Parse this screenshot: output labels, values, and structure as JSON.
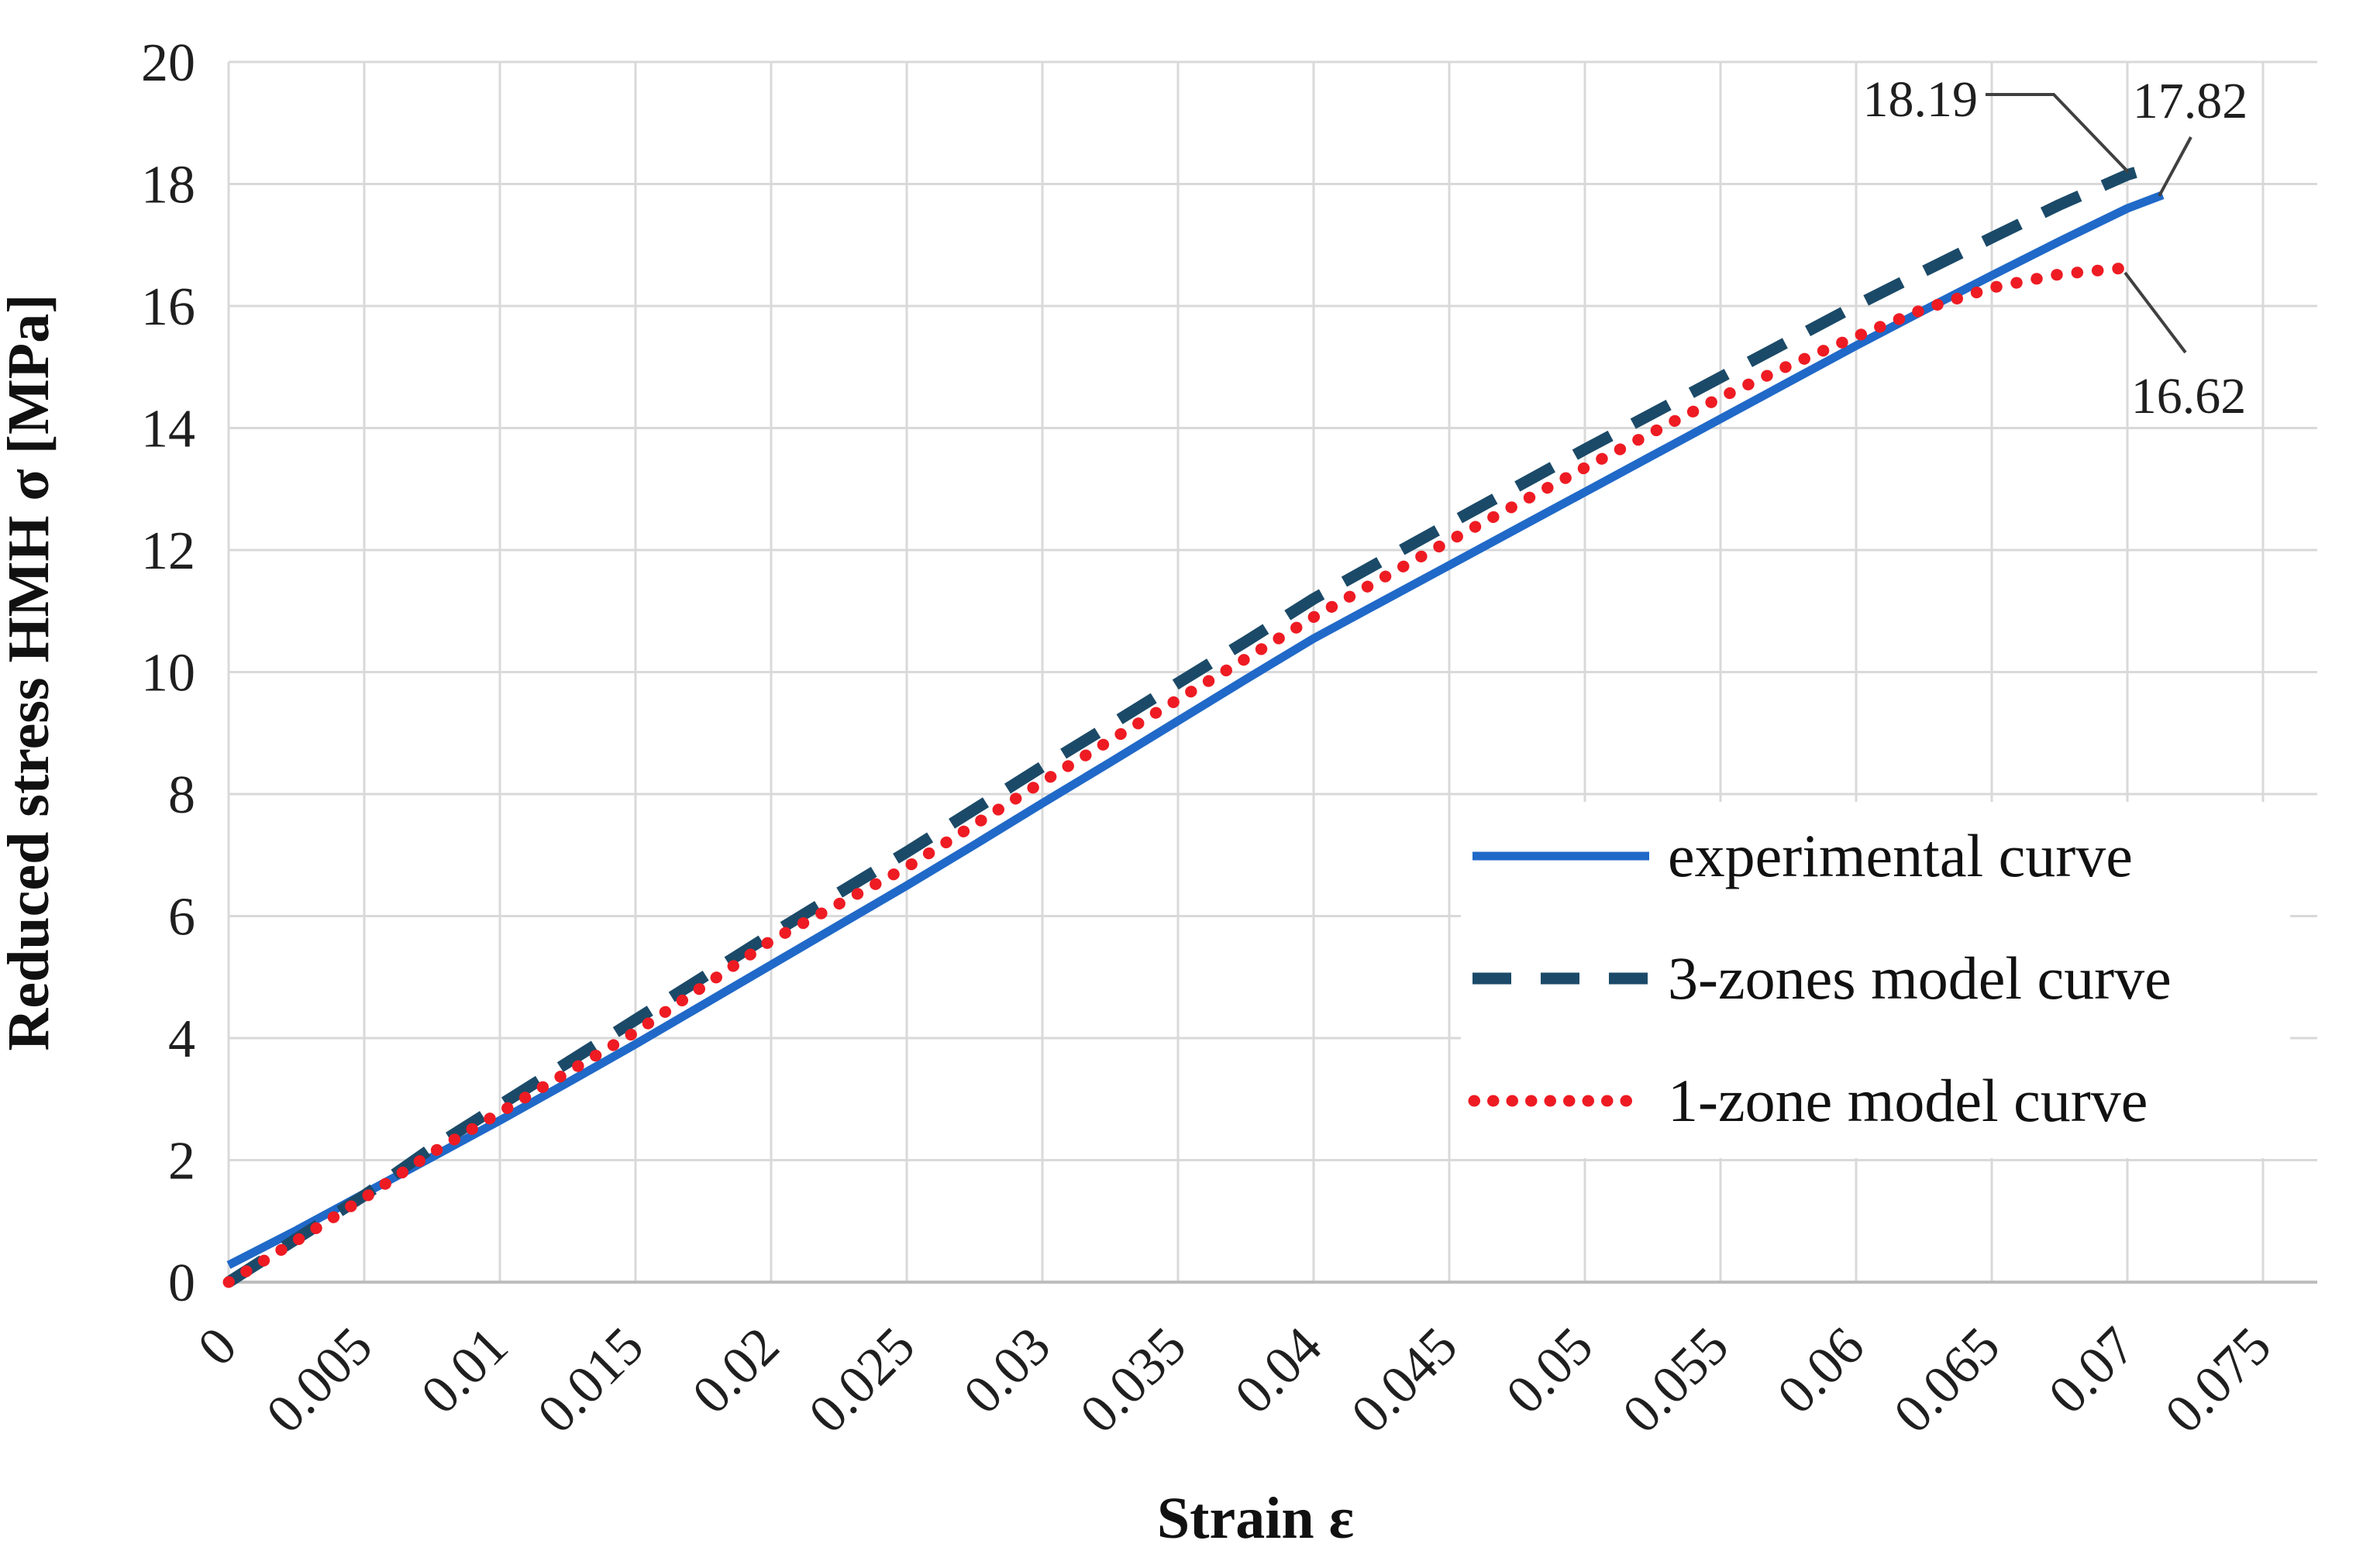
{
  "chart_data": {
    "type": "line",
    "title": "",
    "xlabel": "Strain ε",
    "ylabel": "Reduced stress HMH σ [MPa]",
    "xlim": [
      0,
      0.0766
    ],
    "ylim": [
      0,
      20
    ],
    "grid": true,
    "legend_position": "right-middle",
    "x_ticks": [
      "0",
      "0.005",
      "0.01",
      "0.015",
      "0.02",
      "0.025",
      "0.03",
      "0.035",
      "0.04",
      "0.045",
      "0.05",
      "0.055",
      "0.06",
      "0.065",
      "0.07",
      "0.075"
    ],
    "y_ticks": [
      "0",
      "2",
      "4",
      "6",
      "8",
      "10",
      "12",
      "14",
      "16",
      "18",
      "20"
    ],
    "colors": {
      "experimental": "#2069c8",
      "three_zones": "#1b4a68",
      "one_zone": "#ee1b23",
      "gridline": "#d9d9d9",
      "leader": "#404040"
    },
    "series": [
      {
        "name": "experimental curve",
        "style": "solid",
        "color": "#2069c8",
        "end_value": 17.82,
        "points": [
          [
            0,
            0.28
          ],
          [
            0.0025,
            0.85
          ],
          [
            0.005,
            1.45
          ],
          [
            0.0075,
            2.05
          ],
          [
            0.01,
            2.65
          ],
          [
            0.0125,
            3.27
          ],
          [
            0.015,
            3.9
          ],
          [
            0.0175,
            4.55
          ],
          [
            0.02,
            5.2
          ],
          [
            0.0225,
            5.85
          ],
          [
            0.025,
            6.5
          ],
          [
            0.0275,
            7.17
          ],
          [
            0.03,
            7.85
          ],
          [
            0.0325,
            8.52
          ],
          [
            0.035,
            9.2
          ],
          [
            0.0375,
            9.88
          ],
          [
            0.04,
            10.55
          ],
          [
            0.0425,
            11.15
          ],
          [
            0.045,
            11.75
          ],
          [
            0.0475,
            12.35
          ],
          [
            0.05,
            12.95
          ],
          [
            0.0525,
            13.55
          ],
          [
            0.055,
            14.15
          ],
          [
            0.0575,
            14.75
          ],
          [
            0.06,
            15.35
          ],
          [
            0.0625,
            15.93
          ],
          [
            0.065,
            16.5
          ],
          [
            0.0675,
            17.06
          ],
          [
            0.07,
            17.6
          ],
          [
            0.0713,
            17.82
          ]
        ]
      },
      {
        "name": "3-zones model curve",
        "style": "dashed",
        "color": "#1b4a68",
        "end_value": 18.19,
        "points": [
          [
            0,
            0
          ],
          [
            0.0025,
            0.71
          ],
          [
            0.005,
            1.42
          ],
          [
            0.0075,
            2.2
          ],
          [
            0.01,
            2.9
          ],
          [
            0.0125,
            3.6
          ],
          [
            0.015,
            4.3
          ],
          [
            0.0175,
            5.0
          ],
          [
            0.02,
            5.7
          ],
          [
            0.0225,
            6.38
          ],
          [
            0.025,
            7.05
          ],
          [
            0.0275,
            7.75
          ],
          [
            0.03,
            8.45
          ],
          [
            0.0325,
            9.13
          ],
          [
            0.035,
            9.82
          ],
          [
            0.0375,
            10.5
          ],
          [
            0.04,
            11.2
          ],
          [
            0.0425,
            11.82
          ],
          [
            0.045,
            12.43
          ],
          [
            0.0475,
            13.04
          ],
          [
            0.05,
            13.65
          ],
          [
            0.0525,
            14.24
          ],
          [
            0.055,
            14.83
          ],
          [
            0.0575,
            15.42
          ],
          [
            0.06,
            16.01
          ],
          [
            0.0625,
            16.57
          ],
          [
            0.065,
            17.12
          ],
          [
            0.0675,
            17.66
          ],
          [
            0.07,
            18.15
          ],
          [
            0.0703,
            18.19
          ]
        ]
      },
      {
        "name": "1-zone model curve",
        "style": "dotted",
        "color": "#ee1b23",
        "end_value": 16.62,
        "points": [
          [
            0,
            0
          ],
          [
            0.0025,
            0.68
          ],
          [
            0.005,
            1.38
          ],
          [
            0.0075,
            2.12
          ],
          [
            0.01,
            2.78
          ],
          [
            0.0125,
            3.44
          ],
          [
            0.015,
            4.1
          ],
          [
            0.0175,
            4.85
          ],
          [
            0.02,
            5.6
          ],
          [
            0.0225,
            6.2
          ],
          [
            0.025,
            6.8
          ],
          [
            0.0275,
            7.5
          ],
          [
            0.03,
            8.2
          ],
          [
            0.0325,
            8.88
          ],
          [
            0.035,
            9.55
          ],
          [
            0.0375,
            10.22
          ],
          [
            0.04,
            10.9
          ],
          [
            0.0425,
            11.53
          ],
          [
            0.045,
            12.15
          ],
          [
            0.0475,
            12.75
          ],
          [
            0.05,
            13.35
          ],
          [
            0.0525,
            13.93
          ],
          [
            0.055,
            14.5
          ],
          [
            0.0575,
            15.02
          ],
          [
            0.06,
            15.5
          ],
          [
            0.0625,
            15.95
          ],
          [
            0.065,
            16.3
          ],
          [
            0.0675,
            16.52
          ],
          [
            0.0698,
            16.62
          ]
        ]
      }
    ],
    "annotations": [
      {
        "text": "18.19",
        "series": "3-zones model curve",
        "x": 0.0703,
        "y": 18.19
      },
      {
        "text": "17.82",
        "series": "experimental curve",
        "x": 0.0713,
        "y": 17.82
      },
      {
        "text": "16.62",
        "series": "1-zone model curve",
        "x": 0.0698,
        "y": 16.62
      }
    ]
  }
}
